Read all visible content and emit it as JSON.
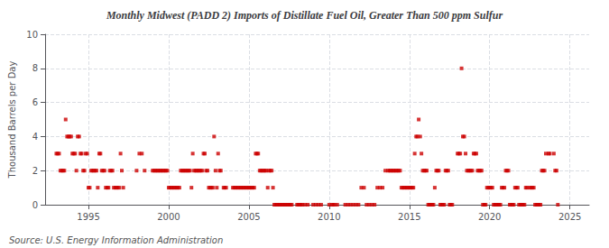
{
  "chart_data": {
    "type": "scatter",
    "title": "Monthly Midwest (PADD 2) Imports of Distillate Fuel Oil, Greater Than 500 ppm Sulfur",
    "ylabel": "Thousand Barrels per Day",
    "annotations": [
      "Source: U.S. Energy Information Administration"
    ],
    "color": "#cc0000",
    "marker": "square",
    "grid": true,
    "xlim": [
      1992.3,
      2026.2
    ],
    "xticks": [
      1995,
      2000,
      2005,
      2010,
      2015,
      2020,
      2025
    ],
    "ylim": [
      0,
      10
    ],
    "yticks": [
      0,
      2,
      4,
      6,
      8,
      10
    ],
    "x": [
      1993.0,
      1993.08,
      1993.17,
      1993.25,
      1993.33,
      1993.42,
      1993.5,
      1993.58,
      1993.67,
      1993.75,
      1993.83,
      1993.92,
      1994.0,
      1994.08,
      1994.17,
      1994.25,
      1994.33,
      1994.42,
      1994.5,
      1994.58,
      1994.67,
      1994.75,
      1994.83,
      1994.92,
      1995.0,
      1995.08,
      1995.17,
      1995.25,
      1995.33,
      1995.42,
      1995.5,
      1995.58,
      1995.67,
      1995.75,
      1995.83,
      1995.92,
      1996.0,
      1996.08,
      1996.17,
      1996.25,
      1996.33,
      1996.42,
      1996.5,
      1996.58,
      1996.67,
      1996.75,
      1996.83,
      1996.92,
      1997.0,
      1997.08,
      1997.17,
      1998.0,
      1998.17,
      1998.33,
      1998.5,
      1999.0,
      1999.08,
      1999.17,
      1999.25,
      1999.33,
      1999.42,
      1999.5,
      1999.58,
      1999.67,
      1999.75,
      1999.83,
      1999.92,
      2000.0,
      2000.08,
      2000.17,
      2000.25,
      2000.33,
      2000.42,
      2000.5,
      2000.58,
      2000.67,
      2000.75,
      2000.83,
      2000.92,
      2001.0,
      2001.08,
      2001.17,
      2001.25,
      2001.33,
      2001.42,
      2001.5,
      2001.58,
      2001.67,
      2001.75,
      2001.83,
      2001.92,
      2002.0,
      2002.08,
      2002.17,
      2002.25,
      2002.33,
      2002.42,
      2002.5,
      2002.58,
      2002.67,
      2002.75,
      2002.83,
      2002.92,
      2003.0,
      2003.08,
      2003.17,
      2003.25,
      2003.42,
      2003.5,
      2003.58,
      2004.0,
      2004.08,
      2004.17,
      2004.25,
      2004.33,
      2004.42,
      2004.5,
      2004.58,
      2004.67,
      2004.75,
      2004.83,
      2004.92,
      2005.0,
      2005.08,
      2005.17,
      2005.25,
      2005.33,
      2005.42,
      2005.5,
      2005.58,
      2005.67,
      2005.75,
      2005.83,
      2005.92,
      2006.0,
      2006.08,
      2006.17,
      2006.25,
      2006.33,
      2006.42,
      2006.5,
      2006.58,
      2006.67,
      2006.75,
      2006.83,
      2006.92,
      2007.0,
      2007.08,
      2007.17,
      2007.25,
      2007.33,
      2007.42,
      2007.5,
      2007.58,
      2007.67,
      2008.0,
      2008.08,
      2008.17,
      2008.25,
      2008.33,
      2008.5,
      2008.67,
      2009.0,
      2009.17,
      2009.33,
      2009.5,
      2010.0,
      2010.17,
      2010.25,
      2010.33,
      2010.5,
      2011.0,
      2011.17,
      2011.33,
      2011.5,
      2011.67,
      2011.83,
      2012.0,
      2012.17,
      2012.33,
      2012.5,
      2012.67,
      2012.83,
      2013.0,
      2013.17,
      2013.33,
      2013.5,
      2013.67,
      2013.75,
      2013.83,
      2013.92,
      2014.0,
      2014.08,
      2014.17,
      2014.25,
      2014.33,
      2014.42,
      2014.5,
      2014.58,
      2014.67,
      2014.75,
      2014.83,
      2014.92,
      2015.0,
      2015.08,
      2015.17,
      2015.25,
      2015.33,
      2015.42,
      2015.5,
      2015.58,
      2015.67,
      2015.75,
      2015.83,
      2015.92,
      2016.0,
      2016.08,
      2016.17,
      2016.25,
      2016.33,
      2016.42,
      2016.5,
      2016.58,
      2016.67,
      2016.75,
      2016.83,
      2016.92,
      2017.0,
      2017.08,
      2017.17,
      2017.25,
      2017.33,
      2017.42,
      2017.5,
      2017.58,
      2017.67,
      2018.0,
      2018.08,
      2018.17,
      2018.25,
      2018.33,
      2018.42,
      2018.5,
      2018.58,
      2018.67,
      2018.75,
      2018.83,
      2018.92,
      2019.0,
      2019.08,
      2019.17,
      2019.25,
      2019.33,
      2019.42,
      2019.5,
      2019.58,
      2019.67,
      2019.75,
      2019.83,
      2019.92,
      2020.0,
      2020.08,
      2020.17,
      2020.25,
      2020.33,
      2020.42,
      2020.5,
      2020.58,
      2020.67,
      2020.75,
      2020.83,
      2020.92,
      2021.0,
      2021.08,
      2021.17,
      2021.25,
      2021.33,
      2021.42,
      2021.5,
      2021.58,
      2021.67,
      2021.75,
      2021.83,
      2021.92,
      2022.0,
      2022.08,
      2022.17,
      2022.25,
      2022.33,
      2022.5,
      2022.58,
      2022.67,
      2022.75,
      2022.83,
      2022.92,
      2023.0,
      2023.08,
      2023.17,
      2023.25,
      2023.33,
      2023.42,
      2023.5,
      2023.67,
      2023.75,
      2024.0,
      2024.08,
      2024.17,
      2024.25
    ],
    "values": [
      3,
      3,
      3,
      2,
      2,
      2,
      2,
      5,
      4,
      4,
      4,
      4,
      3,
      3,
      3,
      2,
      4,
      4,
      3,
      3,
      2,
      2,
      3,
      3,
      1,
      1,
      2,
      2,
      2,
      2,
      2,
      1,
      3,
      3,
      2,
      2,
      2,
      1,
      1,
      1,
      2,
      2,
      2,
      1,
      1,
      1,
      1,
      1,
      3,
      2,
      1,
      2,
      3,
      3,
      2,
      2,
      2,
      2,
      2,
      2,
      2,
      2,
      2,
      2,
      2,
      2,
      2,
      1,
      1,
      1,
      1,
      1,
      1,
      1,
      1,
      1,
      2,
      2,
      2,
      2,
      2,
      2,
      2,
      2,
      1,
      3,
      2,
      2,
      2,
      2,
      2,
      2,
      2,
      3,
      3,
      2,
      2,
      1,
      1,
      1,
      1,
      4,
      2,
      1,
      3,
      2,
      2,
      1,
      1,
      1,
      1,
      1,
      1,
      1,
      1,
      1,
      1,
      1,
      1,
      1,
      1,
      1,
      1,
      1,
      1,
      1,
      1,
      3,
      3,
      3,
      2,
      2,
      2,
      2,
      2,
      2,
      1,
      2,
      2,
      2,
      1,
      0,
      0,
      0,
      0,
      0,
      0,
      0,
      0,
      0,
      0,
      0,
      0,
      0,
      0,
      0,
      0,
      0,
      0,
      0,
      0,
      0,
      0,
      0,
      0,
      0,
      0,
      0,
      0,
      0,
      0,
      0,
      0,
      0,
      0,
      0,
      0,
      1,
      1,
      0,
      0,
      0,
      0,
      1,
      1,
      1,
      2,
      2,
      2,
      2,
      2,
      2,
      2,
      2,
      2,
      2,
      2,
      1,
      1,
      1,
      1,
      1,
      1,
      1,
      1,
      1,
      1,
      3,
      4,
      4,
      5,
      4,
      3,
      2,
      2,
      2,
      2,
      0,
      0,
      0,
      0,
      0,
      1,
      2,
      2,
      2,
      0,
      0,
      0,
      0,
      2,
      2,
      2,
      0,
      0,
      0,
      3,
      3,
      3,
      8,
      4,
      4,
      3,
      2,
      2,
      2,
      2,
      2,
      3,
      3,
      3,
      2,
      2,
      2,
      2,
      0,
      0,
      0,
      1,
      1,
      1,
      1,
      1,
      0,
      0,
      0,
      0,
      0,
      0,
      1,
      1,
      1,
      2,
      2,
      2,
      0,
      0,
      0,
      0,
      1,
      1,
      1,
      0,
      0,
      0,
      0,
      0,
      1,
      1,
      1,
      1,
      1,
      1,
      0,
      0,
      0,
      0,
      0,
      2,
      2,
      2,
      3,
      3,
      3,
      3,
      2,
      2,
      0
    ]
  }
}
